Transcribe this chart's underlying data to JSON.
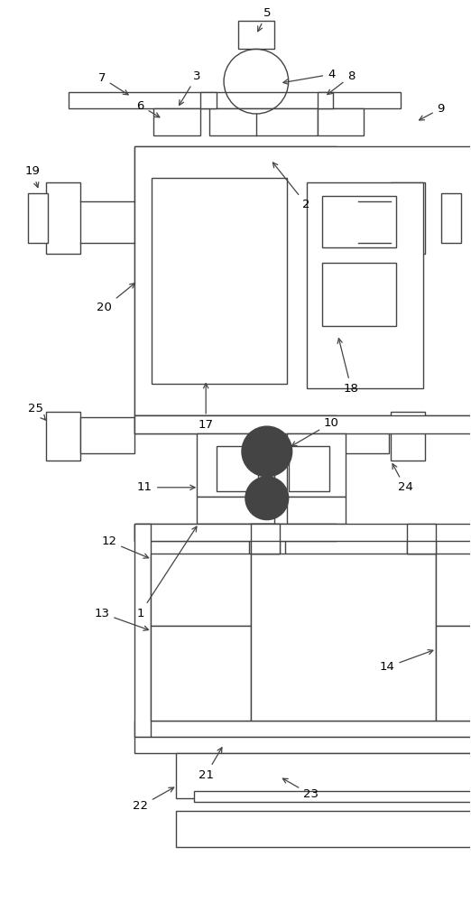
{
  "bg_color": "#ffffff",
  "lc": "#444444",
  "lw": 1.0,
  "figsize": [
    5.22,
    10.0
  ],
  "dpi": 100
}
